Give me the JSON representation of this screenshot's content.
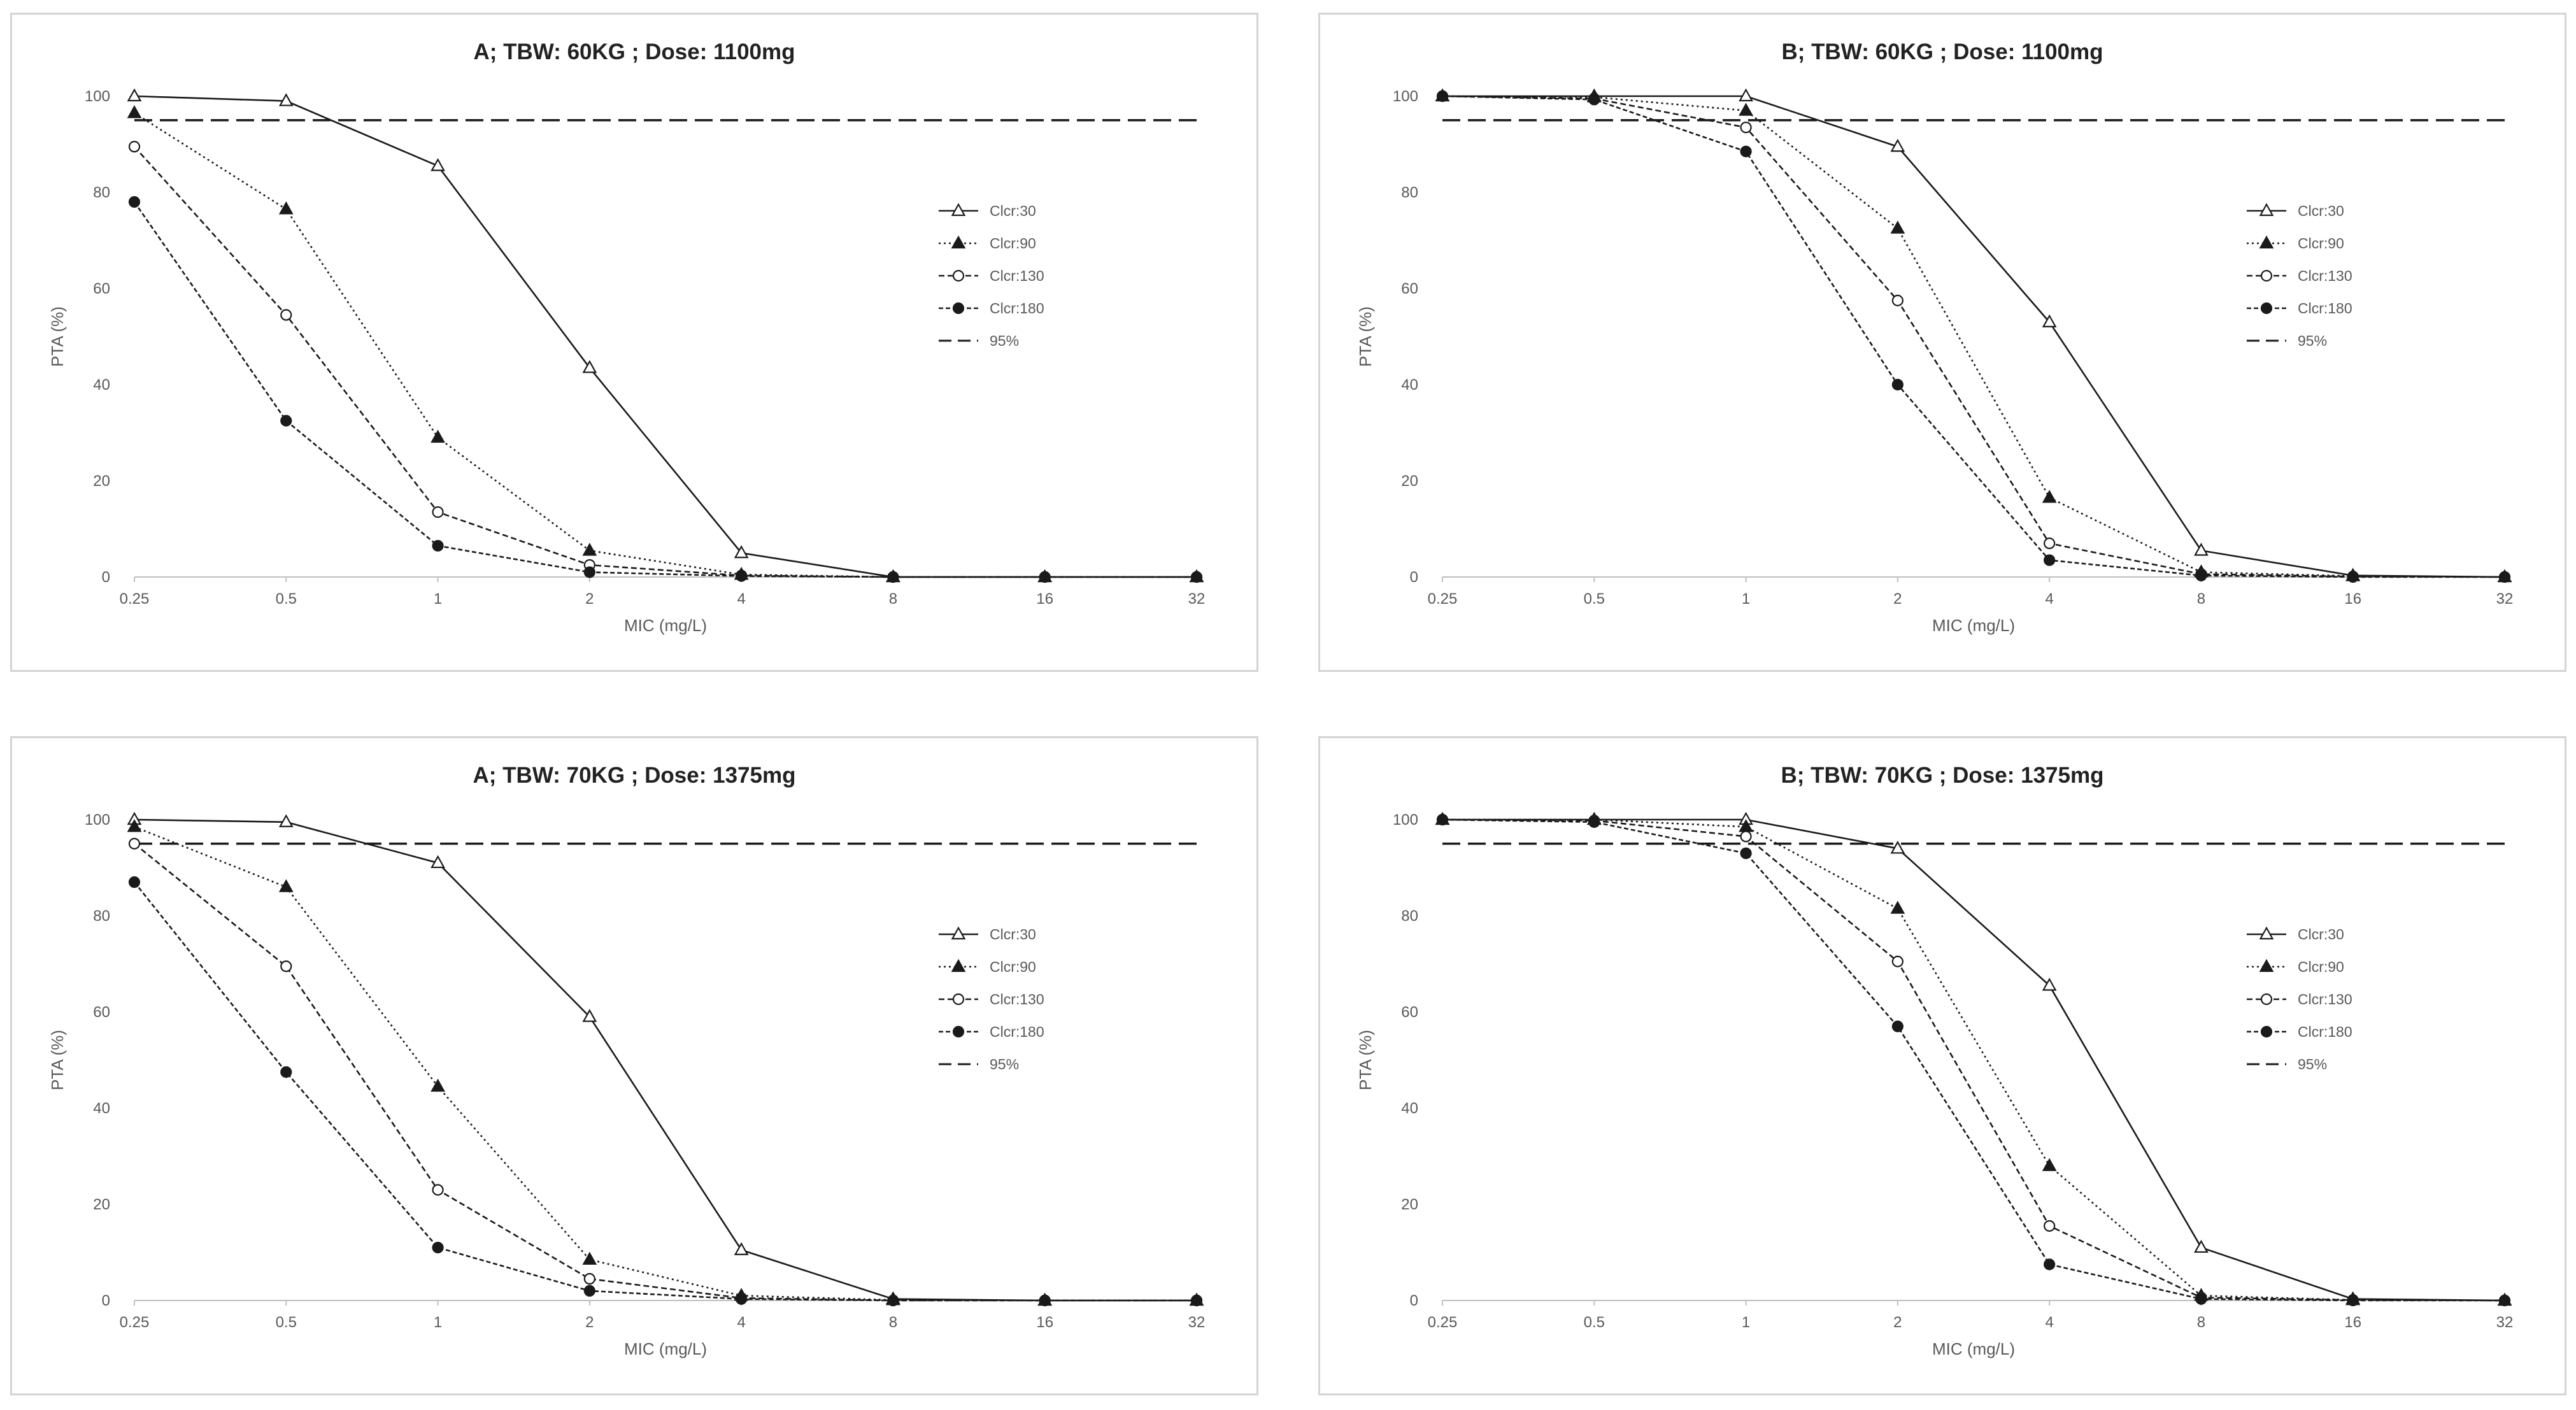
{
  "chart_data": [
    {
      "type": "line",
      "title": "A; TBW: 60KG ; Dose: 1100mg",
      "xlabel": "MIC (mg/L)",
      "ylabel": "PTA (%)",
      "categories": [
        "0.25",
        "0.5",
        "1",
        "2",
        "4",
        "8",
        "16",
        "32"
      ],
      "yticks": [
        "0",
        "20",
        "40",
        "60",
        "80",
        "100"
      ],
      "ylim": [
        0,
        100
      ],
      "reference": {
        "name": "95%",
        "value": 95
      },
      "legend_position": "right",
      "series": [
        {
          "name": "Clcr:30",
          "values": [
            100,
            99,
            85.5,
            43.5,
            5,
            0,
            0,
            0
          ]
        },
        {
          "name": "Clcr:90",
          "values": [
            96.5,
            76.5,
            29,
            5.5,
            0.5,
            0,
            0,
            0
          ]
        },
        {
          "name": "Clcr:130",
          "values": [
            89.5,
            54.5,
            13.5,
            2.5,
            0.3,
            0,
            0,
            0
          ]
        },
        {
          "name": "Clcr:180",
          "values": [
            78,
            32.5,
            6.5,
            1,
            0.2,
            0,
            0,
            0
          ]
        }
      ]
    },
    {
      "type": "line",
      "title": "B; TBW: 60KG ;  Dose: 1100mg",
      "xlabel": "MIC (mg/L)",
      "ylabel": "PTA (%)",
      "categories": [
        "0.25",
        "0.5",
        "1",
        "2",
        "4",
        "8",
        "16",
        "32"
      ],
      "yticks": [
        "0",
        "20",
        "40",
        "60",
        "80",
        "100"
      ],
      "ylim": [
        0,
        100
      ],
      "reference": {
        "name": "95%",
        "value": 95
      },
      "legend_position": "right",
      "series": [
        {
          "name": "Clcr:30",
          "values": [
            100,
            100,
            100,
            89.5,
            53,
            5.5,
            0.3,
            0
          ]
        },
        {
          "name": "Clcr:90",
          "values": [
            100,
            99.8,
            97,
            72.5,
            16.5,
            1,
            0.2,
            0
          ]
        },
        {
          "name": "Clcr:130",
          "values": [
            100,
            99.5,
            93.5,
            57.5,
            7,
            0.6,
            0.1,
            0
          ]
        },
        {
          "name": "Clcr:180",
          "values": [
            100,
            99.3,
            88.5,
            40,
            3.5,
            0.3,
            0,
            0
          ]
        }
      ]
    },
    {
      "type": "line",
      "title": "A; TBW: 70KG ; Dose: 1375mg",
      "xlabel": "MIC (mg/L)",
      "ylabel": "PTA (%)",
      "categories": [
        "0.25",
        "0.5",
        "1",
        "2",
        "4",
        "8",
        "16",
        "32"
      ],
      "yticks": [
        "0",
        "20",
        "40",
        "60",
        "80",
        "100"
      ],
      "ylim": [
        0,
        100
      ],
      "reference": {
        "name": "95%",
        "value": 95
      },
      "legend_position": "right",
      "series": [
        {
          "name": "Clcr:30",
          "values": [
            100,
            99.5,
            91,
            59,
            10.5,
            0.3,
            0,
            0
          ]
        },
        {
          "name": "Clcr:90",
          "values": [
            98.5,
            86,
            44.5,
            8.5,
            1,
            0.1,
            0,
            0
          ]
        },
        {
          "name": "Clcr:130",
          "values": [
            95,
            69.5,
            23,
            4.5,
            0.5,
            0,
            0,
            0
          ]
        },
        {
          "name": "Clcr:180",
          "values": [
            87,
            47.5,
            11,
            2,
            0.3,
            0,
            0,
            0
          ]
        }
      ]
    },
    {
      "type": "line",
      "title": "B; TBW: 70KG ; Dose: 1375mg",
      "xlabel": "MIC (mg/L)",
      "ylabel": "PTA (%)",
      "categories": [
        "0.25",
        "0.5",
        "1",
        "2",
        "4",
        "8",
        "16",
        "32"
      ],
      "yticks": [
        "0",
        "20",
        "40",
        "60",
        "80",
        "100"
      ],
      "ylim": [
        0,
        100
      ],
      "reference": {
        "name": "95%",
        "value": 95
      },
      "legend_position": "right",
      "series": [
        {
          "name": "Clcr:30",
          "values": [
            100,
            100,
            100,
            94,
            65.5,
            11,
            0.3,
            0
          ]
        },
        {
          "name": "Clcr:90",
          "values": [
            100,
            100,
            98.5,
            81.5,
            28,
            1,
            0.1,
            0
          ]
        },
        {
          "name": "Clcr:130",
          "values": [
            100,
            99.8,
            96.5,
            70.5,
            15.5,
            0.6,
            0.1,
            0
          ]
        },
        {
          "name": "Clcr:180",
          "values": [
            100,
            99.5,
            93,
            57,
            7.5,
            0.3,
            0,
            0
          ]
        }
      ]
    }
  ]
}
